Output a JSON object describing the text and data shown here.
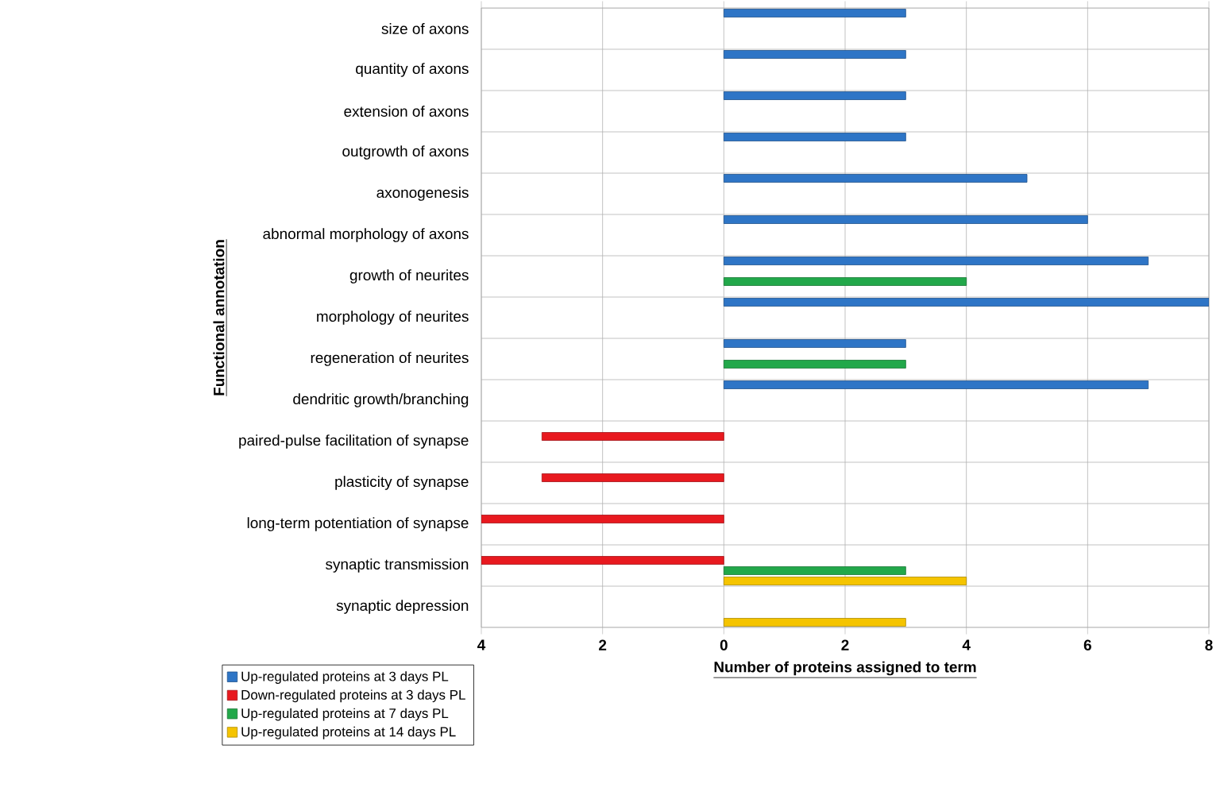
{
  "chart_data": {
    "type": "bar",
    "orientation": "horizontal",
    "xlabel": "Number of proteins assigned to term",
    "ylabel": "Functional annotation",
    "categories": [
      "size of axons",
      "quantity of axons",
      "extension of axons",
      "outgrowth of axons",
      "axonogenesis",
      "abnormal morphology of axons",
      "growth of neurites",
      "morphology of neurites",
      "regeneration of neurites",
      "dendritic growth/branching",
      "paired-pulse facilitation of synapse",
      "plasticity of synapse",
      "long-term potentiation of synapse",
      "synaptic transmission",
      "synaptic depression"
    ],
    "series": [
      {
        "name": "Up-regulated proteins at 3 days PL",
        "color": "#2e75c6",
        "values": [
          3,
          3,
          3,
          3,
          5,
          6,
          7,
          8,
          3,
          7,
          null,
          null,
          null,
          null,
          null
        ]
      },
      {
        "name": "Down-regulated proteins at 3 days PL",
        "color": "#e8191f",
        "values": [
          null,
          null,
          null,
          null,
          null,
          null,
          null,
          null,
          null,
          null,
          -3,
          -3,
          -4,
          -4,
          null
        ]
      },
      {
        "name": "Up-regulated proteins at 7 days PL",
        "color": "#22a84a",
        "values": [
          null,
          null,
          null,
          null,
          null,
          null,
          4,
          null,
          3,
          null,
          null,
          null,
          null,
          3,
          null
        ]
      },
      {
        "name": "Up-regulated proteins at 14 days PL",
        "color": "#f5c400",
        "values": [
          null,
          null,
          null,
          null,
          null,
          null,
          null,
          null,
          null,
          null,
          null,
          null,
          null,
          4,
          3
        ]
      }
    ],
    "xlim": [
      -4,
      8
    ],
    "xticks": [
      {
        "value": -4,
        "label": "4"
      },
      {
        "value": -2,
        "label": "2"
      },
      0,
      2,
      4,
      6,
      8
    ],
    "grid": true,
    "legend": "bottom left"
  }
}
